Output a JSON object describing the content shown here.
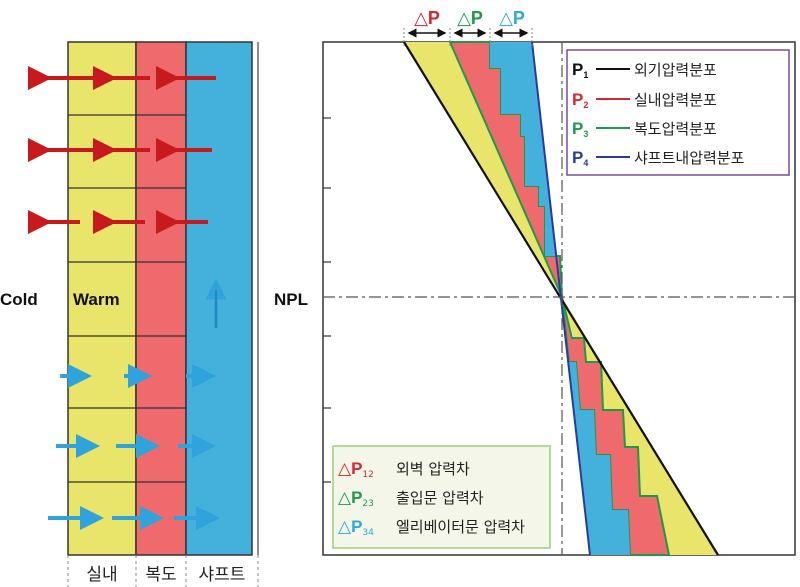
{
  "left_diagram": {
    "outside_label": "Cold",
    "indoor_label": "Warm",
    "zone_labels": [
      "실내",
      "복도",
      "샤프트"
    ],
    "colors": {
      "indoor": "#e8e56a",
      "corridor": "#ef6a6d",
      "shaft": "#44b0dc",
      "outflow_arrow": "#c8191e",
      "inflow_arrow": "#30a3dc"
    }
  },
  "right_diagram": {
    "npl_label": "NPL",
    "delta_labels": [
      {
        "symbol": "△",
        "letter": "P",
        "color": "#d8262c"
      },
      {
        "symbol": "△",
        "letter": "P",
        "color": "#1c9a4c"
      },
      {
        "symbol": "△",
        "letter": "P",
        "color": "#2aa9de"
      }
    ],
    "legend_lines": [
      {
        "symbol": "P",
        "sub": "1",
        "symbol_color": "#111111",
        "line_color": "#111111",
        "text": "외기압력분포"
      },
      {
        "symbol": "P",
        "sub": "2",
        "symbol_color": "#d8262c",
        "line_color": "#d8262c",
        "text": "실내압력분포"
      },
      {
        "symbol": "P",
        "sub": "3",
        "symbol_color": "#1c9a4c",
        "line_color": "#1c9a4c",
        "text": "복도압력분포"
      },
      {
        "symbol": "P",
        "sub": "4",
        "symbol_color": "#2a3a9e",
        "line_color": "#2a3a9e",
        "text": "샤프트내압력분포"
      }
    ],
    "legend_areas": [
      {
        "symbol": "△",
        "letter": "P",
        "sub": "12",
        "color": "#d8262c",
        "text": "외벽 압력차"
      },
      {
        "symbol": "△",
        "letter": "P",
        "sub": "23",
        "color": "#1c9a4c",
        "text": "출입문 압력차"
      },
      {
        "symbol": "△",
        "letter": "P",
        "sub": "34",
        "color": "#2aa9de",
        "text": "엘리베이터문 압력차"
      }
    ]
  }
}
